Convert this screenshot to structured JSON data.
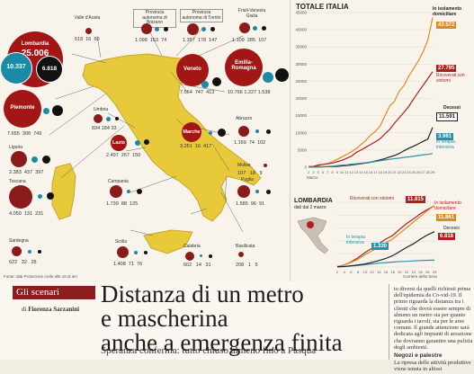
{
  "map": {
    "source": "Fonte: dati Protezione civile alle 18 di ieri",
    "credit": "Corriere della Sera",
    "lombardia": {
      "name": "Lombardia",
      "total": "25.006",
      "v1": "10.337",
      "v2": "6.818"
    },
    "regions": [
      {
        "name": "Valle d'Aosta",
        "vals": [
          "518",
          "16",
          "60"
        ]
      },
      {
        "name": "Provincia autonoma di Bolzano",
        "vals": [
          "1.098",
          "153",
          "74"
        ]
      },
      {
        "name": "Provincia autonoma di Trento",
        "vals": [
          "1.357",
          "178",
          "147"
        ]
      },
      {
        "name": "Friuli-Venezia Giulia",
        "vals": [
          "1.109",
          "285",
          "107"
        ]
      },
      {
        "name": "Piemonte",
        "vals": [
          "7.655",
          "308",
          "749"
        ]
      },
      {
        "name": "Liguria",
        "vals": [
          "2.383",
          "437",
          "397"
        ]
      },
      {
        "name": "Toscana",
        "vals": [
          "4.050",
          "131",
          "231"
        ]
      },
      {
        "name": "Sardegna",
        "vals": [
          "622",
          "32",
          "28"
        ]
      },
      {
        "name": "Veneto",
        "vals": [
          "7.564",
          "747",
          "413"
        ]
      },
      {
        "name": "Emilia-Romagna",
        "vals": [
          "10.766",
          "1.227",
          "1.538"
        ]
      },
      {
        "name": "Umbria",
        "vals": [
          "834",
          "184",
          "33"
        ]
      },
      {
        "name": "Marche",
        "vals": [
          "3.251",
          "16",
          "417"
        ]
      },
      {
        "name": "Abruzzo",
        "vals": [
          "1.169",
          "74",
          "102"
        ]
      },
      {
        "name": "Lazio",
        "vals": [
          "2.497",
          "267",
          "150"
        ]
      },
      {
        "name": "Molise",
        "vals": [
          "107",
          "18",
          "9"
        ]
      },
      {
        "name": "Campania",
        "vals": [
          "1.739",
          "88",
          "125"
        ]
      },
      {
        "name": "Puglia",
        "vals": [
          "1.585",
          "96",
          "91"
        ]
      },
      {
        "name": "Sicilia",
        "vals": [
          "1.408",
          "71",
          "76"
        ]
      },
      {
        "name": "Calabria",
        "vals": [
          "602",
          "14",
          "31"
        ]
      },
      {
        "name": "Basilicata",
        "vals": [
          "208",
          "1",
          "5"
        ]
      }
    ]
  },
  "chart_data": [
    {
      "type": "line",
      "title": "TOTALE ITALIA",
      "x_labels": [
        "2",
        "3",
        "5",
        "6",
        "7",
        "8",
        "9",
        "10",
        "11",
        "12",
        "13",
        "14",
        "15",
        "16",
        "17",
        "18",
        "19",
        "20",
        "21",
        "22",
        "23",
        "24",
        "25",
        "26",
        "27",
        "28",
        "29"
      ],
      "x_month_label": "Marzo",
      "ylim": [
        0,
        45000
      ],
      "y_ticks": [
        "0",
        "5000",
        "10000",
        "15000",
        "20000",
        "25000",
        "30000",
        "35000",
        "40000",
        "45000"
      ],
      "series": [
        {
          "name": "In isolamento domiciliare",
          "color": "#e08a1e",
          "label_value": "43.572",
          "values": [
            200,
            280,
            450,
            800,
            1100,
            1600,
            2300,
            3000,
            3700,
            4500,
            5400,
            6600,
            7800,
            9300,
            10400,
            12000,
            14900,
            17800,
            19200,
            22100,
            23800,
            26500,
            28700,
            30900,
            33600,
            37000,
            43572
          ]
        },
        {
          "name": "Ricoverati con sintomi",
          "color": "#b01e1e",
          "label_value": "27.795",
          "values": [
            130,
            160,
            650,
            800,
            1000,
            1200,
            1600,
            2000,
            2600,
            3200,
            4300,
            5000,
            5800,
            6600,
            7400,
            8300,
            9700,
            11000,
            12800,
            14400,
            16000,
            17700,
            19800,
            21900,
            23800,
            25800,
            27795
          ]
        },
        {
          "name": "Decessi",
          "color": "#222222",
          "label_value": "11.591",
          "values": [
            20,
            30,
            80,
            110,
            150,
            200,
            240,
            400,
            500,
            650,
            830,
            1000,
            1250,
            1440,
            1800,
            2150,
            2500,
            2980,
            3400,
            4000,
            4800,
            5500,
            6100,
            6800,
            7500,
            8200,
            11591
          ]
        },
        {
          "name": "In terapia intensiva",
          "color": "#2a8fa8",
          "label_value": "3.981",
          "values": [
            30,
            40,
            140,
            160,
            200,
            300,
            450,
            600,
            700,
            880,
            1000,
            1150,
            1300,
            1500,
            1670,
            1900,
            2100,
            2300,
            2500,
            2650,
            2860,
            3000,
            3200,
            3400,
            3600,
            3750,
            3981
          ]
        }
      ]
    },
    {
      "type": "line",
      "title": "LOMBARDIA",
      "subtitle": "dati dal 2 marzo",
      "x_labels": [
        "2",
        "4",
        "6",
        "8",
        "10",
        "12",
        "14",
        "16",
        "18",
        "20",
        "22",
        "24",
        "26",
        "28",
        "29"
      ],
      "series": [
        {
          "name": "Ricoverati con sintomi",
          "color": "#b01e1e",
          "label_value": "11.815",
          "values": [
            100,
            400,
            1000,
            1800,
            2800,
            3600,
            4500,
            5400,
            6100,
            7300,
            8400,
            9300,
            10300,
            11100,
            11815
          ]
        },
        {
          "name": "In isolamento domiciliare",
          "color": "#e08a1e",
          "label_value": "11.861",
          "values": [
            80,
            400,
            900,
            1500,
            2400,
            3100,
            3900,
            4700,
            5400,
            6500,
            7600,
            8700,
            9800,
            10900,
            11861
          ]
        },
        {
          "name": "In terapia intensiva",
          "color": "#2a8fa8",
          "label_value": "1.330",
          "values": [
            20,
            80,
            200,
            300,
            450,
            600,
            750,
            850,
            950,
            1050,
            1100,
            1180,
            1250,
            1300,
            1330
          ]
        },
        {
          "name": "Decessi",
          "color": "#222222",
          "label_value": "6.818",
          "values": [
            30,
            100,
            250,
            400,
            600,
            900,
            1250,
            1650,
            2200,
            3000,
            3800,
            4500,
            5400,
            6200,
            6818
          ]
        }
      ]
    }
  ],
  "article": {
    "kicker": "Gli scenari",
    "byline_prefix": "di",
    "author": "Fiorenza Sarzanini",
    "headline_1": "Distanza di un metro",
    "headline_2": "e mascherina",
    "headline_3": "anche a emergenza finita",
    "deck": "Speranza conferma: tutto chiuso almeno fino a Pasqua",
    "column_text": "to diversi da quelli richiesti prima dell'epidemia da Co-vid-19. Il primo riguarda la distanza tra i clienti che dovrà essere sempre di almeno un metro sia per quanto riguarda i tavoli, sia per le aree comuni. Il grande attenzione sarà dedicata agli impianti di aerazione che dovranno garantire una pulizia degli ambienti.",
    "subhead": "Negozi e palestre",
    "column_text_2": "La ripresa delle attività produttive viene tenuta in altissi"
  }
}
